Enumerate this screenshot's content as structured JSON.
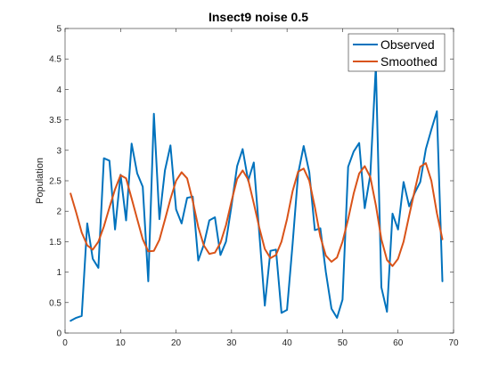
{
  "chart_data": {
    "type": "line",
    "title": "Insect9 noise 0.5",
    "xlabel": "",
    "ylabel": "Population",
    "xlim": [
      0,
      70
    ],
    "ylim": [
      0,
      5
    ],
    "xticks": [
      0,
      10,
      20,
      30,
      40,
      50,
      60,
      70
    ],
    "yticks": [
      0,
      0.5,
      1,
      1.5,
      2,
      2.5,
      3,
      3.5,
      4,
      4.5,
      5
    ],
    "grid": false,
    "legend_position": "top-right",
    "series": [
      {
        "name": "Observed",
        "color": "#0072BD",
        "x": [
          1,
          2,
          3,
          4,
          5,
          6,
          7,
          8,
          9,
          10,
          11,
          12,
          13,
          14,
          15,
          16,
          17,
          18,
          19,
          20,
          21,
          22,
          23,
          24,
          25,
          26,
          27,
          28,
          29,
          30,
          31,
          32,
          33,
          34,
          35,
          36,
          37,
          38,
          39,
          40,
          41,
          42,
          43,
          44,
          45,
          46,
          47,
          48,
          49,
          50,
          51,
          52,
          53,
          54,
          55,
          56,
          57,
          58,
          59,
          60,
          61,
          62,
          63,
          64,
          65,
          66,
          67,
          68
        ],
        "y": [
          0.2,
          0.25,
          0.28,
          1.8,
          1.22,
          1.07,
          2.87,
          2.83,
          1.7,
          2.6,
          1.85,
          3.11,
          2.62,
          2.4,
          0.85,
          3.6,
          1.87,
          2.67,
          3.08,
          2.03,
          1.8,
          2.22,
          2.24,
          1.19,
          1.45,
          1.85,
          1.9,
          1.28,
          1.5,
          2.1,
          2.74,
          3.02,
          2.5,
          2.8,
          1.64,
          0.45,
          1.35,
          1.37,
          0.33,
          0.38,
          1.47,
          2.62,
          3.07,
          2.64,
          1.69,
          1.72,
          1.0,
          0.4,
          0.25,
          0.55,
          2.73,
          2.98,
          3.12,
          2.05,
          2.6,
          4.38,
          0.75,
          0.35,
          1.96,
          1.7,
          2.48,
          2.08,
          2.3,
          2.48,
          3.02,
          3.34,
          3.64,
          0.85
        ]
      },
      {
        "name": "Smoothed",
        "color": "#D95319",
        "x": [
          1,
          2,
          3,
          4,
          5,
          6,
          7,
          8,
          9,
          10,
          11,
          12,
          13,
          14,
          15,
          16,
          17,
          18,
          19,
          20,
          21,
          22,
          23,
          24,
          25,
          26,
          27,
          28,
          29,
          30,
          31,
          32,
          33,
          34,
          35,
          36,
          37,
          38,
          39,
          40,
          41,
          42,
          43,
          44,
          45,
          46,
          47,
          48,
          49,
          50,
          51,
          52,
          53,
          54,
          55,
          56,
          57,
          58,
          59,
          60,
          61,
          62,
          63,
          64,
          65,
          66,
          67,
          68
        ],
        "y": [
          2.29,
          1.98,
          1.65,
          1.44,
          1.37,
          1.5,
          1.75,
          2.06,
          2.36,
          2.59,
          2.54,
          2.21,
          1.87,
          1.54,
          1.34,
          1.35,
          1.53,
          1.86,
          2.2,
          2.5,
          2.64,
          2.54,
          2.17,
          1.74,
          1.44,
          1.3,
          1.32,
          1.48,
          1.77,
          2.17,
          2.53,
          2.67,
          2.52,
          2.13,
          1.73,
          1.38,
          1.23,
          1.28,
          1.5,
          1.87,
          2.33,
          2.65,
          2.7,
          2.5,
          2.07,
          1.58,
          1.27,
          1.17,
          1.24,
          1.5,
          1.87,
          2.29,
          2.62,
          2.74,
          2.56,
          2.1,
          1.54,
          1.2,
          1.1,
          1.22,
          1.5,
          1.93,
          2.34,
          2.73,
          2.79,
          2.5,
          1.97,
          1.54
        ]
      }
    ]
  }
}
